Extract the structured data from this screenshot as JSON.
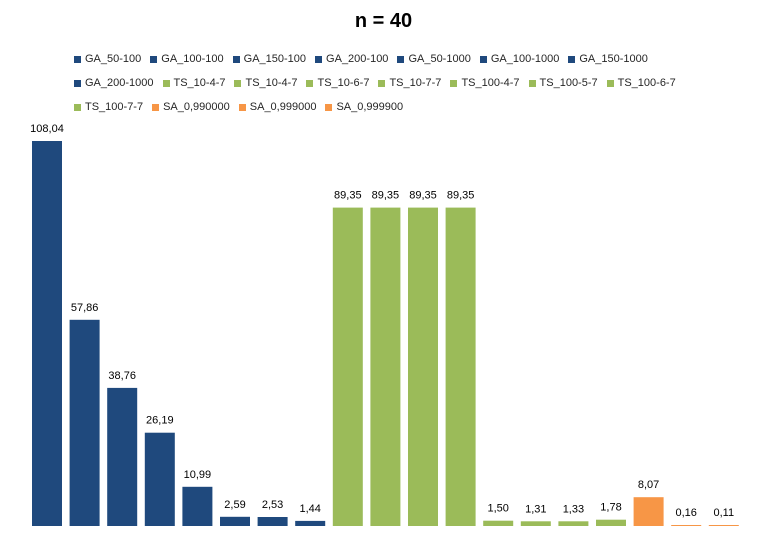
{
  "chart_data": {
    "type": "bar",
    "title": "n = 40",
    "xlabel": "",
    "ylabel": "",
    "ylim": [
      0,
      110
    ],
    "grid": false,
    "legend_position": "top",
    "categories": [
      "GA_50-100",
      "GA_100-100",
      "GA_150-100",
      "GA_200-100",
      "GA_50-1000",
      "GA_100-1000",
      "GA_150-1000",
      "GA_200-1000",
      "TS_10-4-7",
      "TS_10-4-7",
      "TS_10-6-7",
      "TS_10-7-7",
      "TS_100-4-7",
      "TS_100-5-7",
      "TS_100-6-7",
      "TS_100-7-7",
      "SA_0,990000",
      "SA_0,999000",
      "SA_0,999900"
    ],
    "values": [
      108.04,
      57.86,
      38.76,
      26.19,
      10.99,
      2.59,
      2.53,
      1.44,
      89.35,
      89.35,
      89.35,
      89.35,
      1.5,
      1.31,
      1.33,
      1.78,
      8.07,
      0.16,
      0.11
    ],
    "value_labels": [
      "108,04",
      "57,86",
      "38,76",
      "26,19",
      "10,99",
      "2,59",
      "2,53",
      "1,44",
      "89,35",
      "89,35",
      "89,35",
      "89,35",
      "1,50",
      "1,31",
      "1,33",
      "1,78",
      "8,07",
      "0,16",
      "0,11"
    ],
    "group_colors": {
      "GA": "#1F497D",
      "TS": "#9BBB59",
      "SA": "#F79646"
    }
  }
}
